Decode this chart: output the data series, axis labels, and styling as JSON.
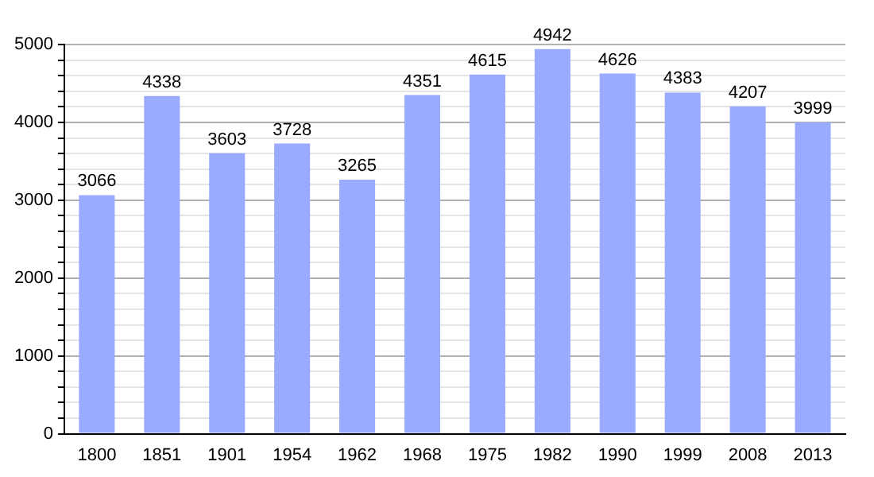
{
  "chart_data": {
    "type": "bar",
    "categories": [
      "1800",
      "1851",
      "1901",
      "1954",
      "1962",
      "1968",
      "1975",
      "1982",
      "1990",
      "1999",
      "2008",
      "2013"
    ],
    "values": [
      3066,
      4338,
      3603,
      3728,
      3265,
      4351,
      4615,
      4942,
      4626,
      4383,
      4207,
      3999
    ],
    "color": "#99aaff",
    "ylim": [
      0,
      5000
    ],
    "yticks": [
      0,
      {
        "value": 200,
        "label": null
      },
      {
        "value": 400,
        "label": null
      },
      {
        "value": 600,
        "label": null
      },
      {
        "value": 800,
        "label": null
      },
      1000,
      {
        "value": 1200,
        "label": null
      },
      {
        "value": 1400,
        "label": null
      },
      {
        "value": 1600,
        "label": null
      },
      {
        "value": 1800,
        "label": null
      },
      2000,
      {
        "value": 2200,
        "label": null
      },
      {
        "value": 2400,
        "label": null
      },
      {
        "value": 2600,
        "label": null
      },
      {
        "value": 2800,
        "label": null
      },
      3000,
      {
        "value": 3200,
        "label": null
      },
      {
        "value": 3400,
        "label": null
      },
      {
        "value": 3600,
        "label": null
      },
      {
        "value": 3800,
        "label": null
      },
      4000,
      {
        "value": 4200,
        "label": null
      },
      {
        "value": 4400,
        "label": null
      },
      {
        "value": 4600,
        "label": null
      },
      {
        "value": 4800,
        "label": null
      },
      5000
    ],
    "grid": "y",
    "data_labels": true
  }
}
